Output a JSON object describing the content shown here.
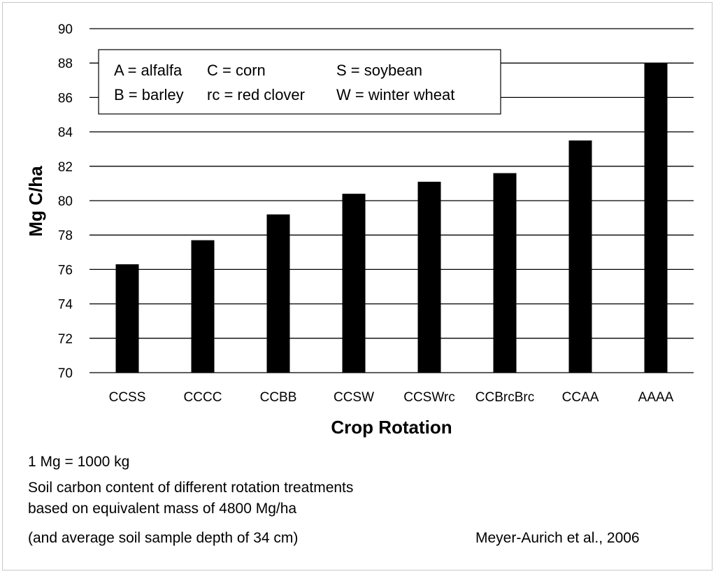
{
  "chart_data": {
    "type": "bar",
    "title": "",
    "xlabel": "Crop Rotation",
    "ylabel": "Mg C/ha",
    "categories": [
      "CCSS",
      "CCCC",
      "CCBB",
      "CCSW",
      "CCSWrc",
      "CCBrcBrc",
      "CCAA",
      "AAAA"
    ],
    "values": [
      76.3,
      77.7,
      79.2,
      80.4,
      81.1,
      81.6,
      83.5,
      88.0
    ],
    "ylim": [
      70,
      90
    ],
    "yticks": [
      "70",
      "72",
      "74",
      "76",
      "78",
      "80",
      "82",
      "84",
      "86",
      "88",
      "90"
    ],
    "grid": true,
    "bar_color": "#000000",
    "legend_box": {
      "placement": "top-left",
      "rows": [
        [
          "A = alfalfa",
          "C = corn",
          "S = soybean"
        ],
        [
          "B = barley",
          "rc = red clover",
          "W = winter wheat"
        ]
      ]
    }
  },
  "notes": {
    "conversion": "1 Mg = 1000 kg",
    "caption_lines": [
      "Soil carbon content of different rotation treatments",
      "based on equivalent mass of 4800 Mg/ha",
      "(and average soil sample depth of 34 cm)"
    ],
    "citation": "Meyer-Aurich et al., 2006"
  }
}
